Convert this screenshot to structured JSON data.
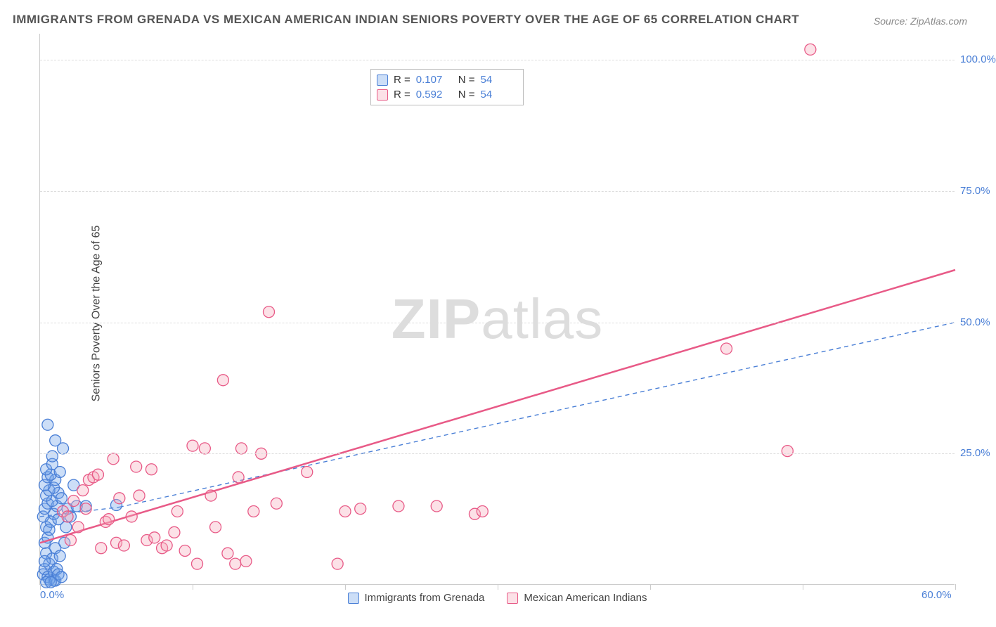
{
  "title": "IMMIGRANTS FROM GRENADA VS MEXICAN AMERICAN INDIAN SENIORS POVERTY OVER THE AGE OF 65 CORRELATION CHART",
  "source": "Source: ZipAtlas.com",
  "ylabel": "Seniors Poverty Over the Age of 65",
  "watermark_a": "ZIP",
  "watermark_b": "atlas",
  "chart": {
    "type": "scatter",
    "xlim": [
      0,
      60
    ],
    "ylim": [
      0,
      105
    ],
    "x_ticks": [
      0,
      10,
      20,
      30,
      40,
      50,
      60
    ],
    "x_tick_labels_shown": {
      "0": "0.0%",
      "60": "60.0%"
    },
    "y_ticks": [
      25,
      50,
      75,
      100
    ],
    "y_tick_labels": {
      "25": "25.0%",
      "50": "50.0%",
      "75": "75.0%",
      "100": "100.0%"
    },
    "grid_color": "#dddddd",
    "axis_color": "#cccccc",
    "tick_label_color": "#4a7fd6",
    "background_color": "#ffffff",
    "marker_radius": 8,
    "marker_stroke_width": 1.3,
    "series": [
      {
        "name": "Immigrants from Grenada",
        "color_fill": "#6ca0e8",
        "color_fill_opacity": 0.35,
        "color_stroke": "#4a7fd6",
        "r": "0.107",
        "n": "54",
        "trend": {
          "x1": 0,
          "y1": 13.0,
          "x2": 5.2,
          "y2": 14.8,
          "dashed_extend_to_x": 60,
          "ext_y": 50,
          "dash": "6,5",
          "width": 1.4
        },
        "points": [
          [
            0.2,
            2
          ],
          [
            0.3,
            3
          ],
          [
            0.5,
            1.5
          ],
          [
            0.6,
            4
          ],
          [
            0.4,
            6
          ],
          [
            0.8,
            5
          ],
          [
            0.3,
            8
          ],
          [
            0.9,
            2.5
          ],
          [
            0.5,
            9
          ],
          [
            1.0,
            7
          ],
          [
            0.4,
            11
          ],
          [
            0.7,
            12
          ],
          [
            0.2,
            13
          ],
          [
            0.9,
            13.5
          ],
          [
            0.3,
            14.5
          ],
          [
            1.1,
            15
          ],
          [
            0.5,
            15.5
          ],
          [
            0.8,
            16
          ],
          [
            0.4,
            17
          ],
          [
            1.2,
            17.5
          ],
          [
            0.6,
            18
          ],
          [
            0.9,
            18.5
          ],
          [
            0.3,
            19
          ],
          [
            1.0,
            20
          ],
          [
            0.5,
            20.5
          ],
          [
            0.7,
            21
          ],
          [
            1.3,
            21.5
          ],
          [
            0.4,
            22
          ],
          [
            0.8,
            23
          ],
          [
            1.5,
            26
          ],
          [
            1.0,
            27.5
          ],
          [
            0.6,
            10.5
          ],
          [
            1.2,
            12.5
          ],
          [
            1.8,
            14.5
          ],
          [
            1.4,
            16.5
          ],
          [
            2.0,
            13
          ],
          [
            2.2,
            19
          ],
          [
            3.0,
            15
          ],
          [
            0.5,
            30.5
          ],
          [
            0.9,
            0.8
          ],
          [
            1.1,
            3
          ],
          [
            1.6,
            8
          ],
          [
            0.3,
            4.5
          ],
          [
            0.6,
            1
          ],
          [
            1.3,
            5.5
          ],
          [
            0.4,
            0.5
          ],
          [
            1.7,
            11
          ],
          [
            2.4,
            15
          ],
          [
            0.8,
            24.5
          ],
          [
            1.0,
            0.8
          ],
          [
            1.2,
            2
          ],
          [
            0.7,
            0.5
          ],
          [
            1.4,
            1.5
          ],
          [
            5.0,
            15.2
          ]
        ]
      },
      {
        "name": "Mexican American Indians",
        "color_fill": "#f5a8bb",
        "color_fill_opacity": 0.35,
        "color_stroke": "#e85a87",
        "r": "0.592",
        "n": "54",
        "trend": {
          "x1": 0,
          "y1": 8.0,
          "x2": 60,
          "y2": 60.0,
          "dash": "none",
          "width": 2.5
        },
        "points": [
          [
            1.5,
            14
          ],
          [
            1.8,
            13
          ],
          [
            2.2,
            16
          ],
          [
            2.5,
            11
          ],
          [
            2.8,
            18
          ],
          [
            3.0,
            14.5
          ],
          [
            3.2,
            20
          ],
          [
            3.5,
            20.5
          ],
          [
            3.8,
            21
          ],
          [
            4.0,
            7
          ],
          [
            4.3,
            12
          ],
          [
            4.5,
            12.5
          ],
          [
            5.0,
            8
          ],
          [
            5.2,
            16.5
          ],
          [
            5.5,
            7.5
          ],
          [
            6.0,
            13
          ],
          [
            6.3,
            22.5
          ],
          [
            6.5,
            17
          ],
          [
            7.0,
            8.5
          ],
          [
            7.3,
            22
          ],
          [
            7.5,
            9
          ],
          [
            8.0,
            7
          ],
          [
            8.3,
            7.5
          ],
          [
            8.8,
            10
          ],
          [
            9.0,
            14
          ],
          [
            9.5,
            6.5
          ],
          [
            10.0,
            26.5
          ],
          [
            10.3,
            4
          ],
          [
            10.8,
            26
          ],
          [
            11.2,
            17
          ],
          [
            11.5,
            11
          ],
          [
            12.0,
            39
          ],
          [
            12.3,
            6
          ],
          [
            12.8,
            4
          ],
          [
            13.0,
            20.5
          ],
          [
            13.2,
            26
          ],
          [
            13.5,
            4.5
          ],
          [
            14.0,
            14
          ],
          [
            14.5,
            25
          ],
          [
            15.0,
            52
          ],
          [
            15.5,
            15.5
          ],
          [
            17.5,
            21.5
          ],
          [
            19.5,
            4
          ],
          [
            20.0,
            14
          ],
          [
            21.0,
            14.5
          ],
          [
            23.5,
            15
          ],
          [
            26.0,
            15
          ],
          [
            28.5,
            13.5
          ],
          [
            29.0,
            14
          ],
          [
            45.0,
            45
          ],
          [
            49.0,
            25.5
          ],
          [
            50.5,
            102
          ],
          [
            2.0,
            8.5
          ],
          [
            4.8,
            24
          ]
        ]
      }
    ]
  }
}
